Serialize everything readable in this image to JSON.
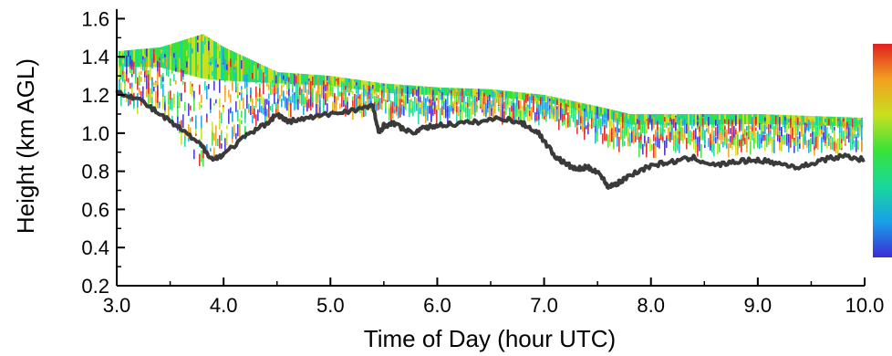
{
  "chart_data": {
    "type": "line",
    "title": "",
    "xlabel": "Time of Day (hour UTC)",
    "ylabel": "Height (km AGL)",
    "xlim": [
      3.0,
      10.0
    ],
    "ylim": [
      0.2,
      1.65
    ],
    "x_ticks": [
      "3.0",
      "4.0",
      "5.0",
      "6.0",
      "7.0",
      "8.0",
      "9.0",
      "10.0"
    ],
    "y_ticks": [
      "0.2",
      "0.4",
      "0.6",
      "0.8",
      "1.0",
      "1.2",
      "1.4",
      "1.6"
    ],
    "x": [
      3.0,
      3.2,
      3.4,
      3.6,
      3.8,
      3.9,
      4.0,
      4.2,
      4.4,
      4.5,
      4.6,
      4.8,
      5.0,
      5.2,
      5.4,
      5.45,
      5.5,
      5.6,
      5.75,
      5.9,
      6.0,
      6.2,
      6.4,
      6.6,
      6.8,
      6.95,
      7.1,
      7.2,
      7.3,
      7.4,
      7.5,
      7.6,
      7.7,
      7.8,
      8.0,
      8.2,
      8.4,
      8.6,
      8.8,
      9.0,
      9.2,
      9.4,
      9.6,
      9.8,
      10.0
    ],
    "series": [
      {
        "color": "#3a3a3a",
        "values": [
          1.22,
          1.18,
          1.1,
          1.02,
          0.93,
          0.86,
          0.89,
          0.98,
          1.05,
          1.1,
          1.06,
          1.08,
          1.1,
          1.12,
          1.14,
          1.0,
          1.04,
          1.05,
          1.0,
          1.03,
          1.04,
          1.05,
          1.06,
          1.08,
          1.05,
          1.0,
          0.88,
          0.84,
          0.81,
          0.82,
          0.8,
          0.72,
          0.74,
          0.78,
          0.83,
          0.85,
          0.87,
          0.83,
          0.85,
          0.86,
          0.84,
          0.82,
          0.86,
          0.88,
          0.86
        ]
      }
    ],
    "colorbar": {
      "colors": [
        "#3b2bd6",
        "#1aa0e8",
        "#18d89c",
        "#39e23a",
        "#c8e020",
        "#f2a020",
        "#e02020"
      ]
    },
    "top_layer_km": {
      "x": [
        3.0,
        3.4,
        3.8,
        4.0,
        4.5,
        5.0,
        5.5,
        6.0,
        6.5,
        7.0,
        7.5,
        7.8,
        8.5,
        9.0,
        9.5,
        10.0
      ],
      "top": [
        1.43,
        1.45,
        1.52,
        1.45,
        1.32,
        1.3,
        1.26,
        1.24,
        1.23,
        1.2,
        1.14,
        1.1,
        1.1,
        1.1,
        1.09,
        1.08
      ],
      "bottom": [
        1.2,
        1.15,
        0.85,
        0.95,
        1.15,
        1.15,
        1.12,
        1.12,
        1.12,
        1.1,
        1.0,
        0.94,
        0.94,
        0.95,
        0.95,
        0.94
      ]
    }
  }
}
